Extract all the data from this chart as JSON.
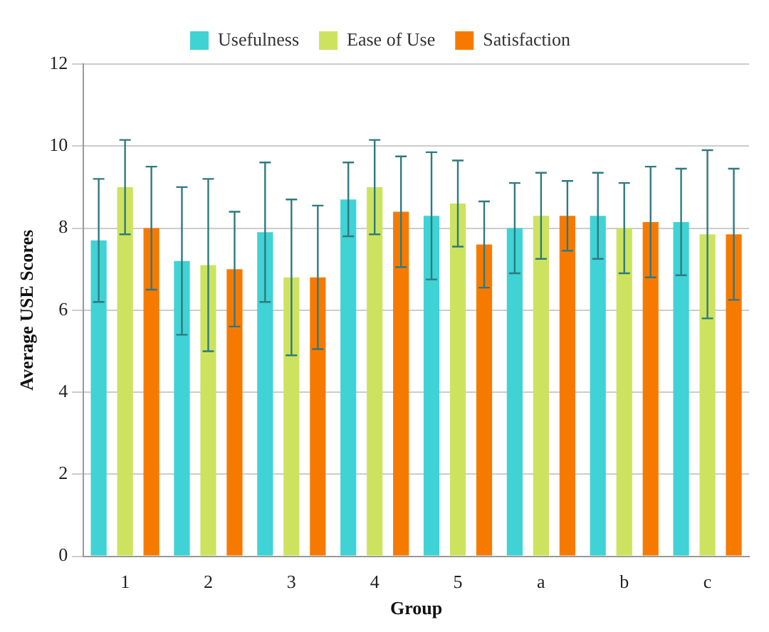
{
  "chart_data": {
    "type": "bar",
    "xlabel": "Group",
    "ylabel": "Average USE Scores",
    "categories": [
      "1",
      "2",
      "3",
      "4",
      "5",
      "a",
      "b",
      "c"
    ],
    "series": [
      {
        "name": "Usefulness",
        "color": "#3fd3d6",
        "values": [
          7.7,
          7.2,
          7.9,
          8.7,
          8.3,
          8.0,
          8.3,
          8.15
        ],
        "errors": [
          1.5,
          1.8,
          1.7,
          0.9,
          1.55,
          1.1,
          1.05,
          1.3
        ]
      },
      {
        "name": "Ease of Use",
        "color": "#cde35f",
        "values": [
          9.0,
          7.1,
          6.8,
          9.0,
          8.6,
          8.3,
          8.0,
          7.85
        ],
        "errors": [
          1.15,
          2.1,
          1.9,
          1.15,
          1.05,
          1.05,
          1.1,
          2.05
        ]
      },
      {
        "name": "Satisfaction",
        "color": "#f77a00",
        "values": [
          8.0,
          7.0,
          6.8,
          8.4,
          7.6,
          8.3,
          8.15,
          7.85
        ],
        "errors": [
          1.5,
          1.4,
          1.75,
          1.35,
          1.05,
          0.85,
          1.35,
          1.6
        ]
      }
    ],
    "ylim": [
      0,
      12
    ],
    "yticks": [
      0,
      2,
      4,
      6,
      8,
      10,
      12
    ],
    "grid": "y",
    "legend": "top"
  }
}
